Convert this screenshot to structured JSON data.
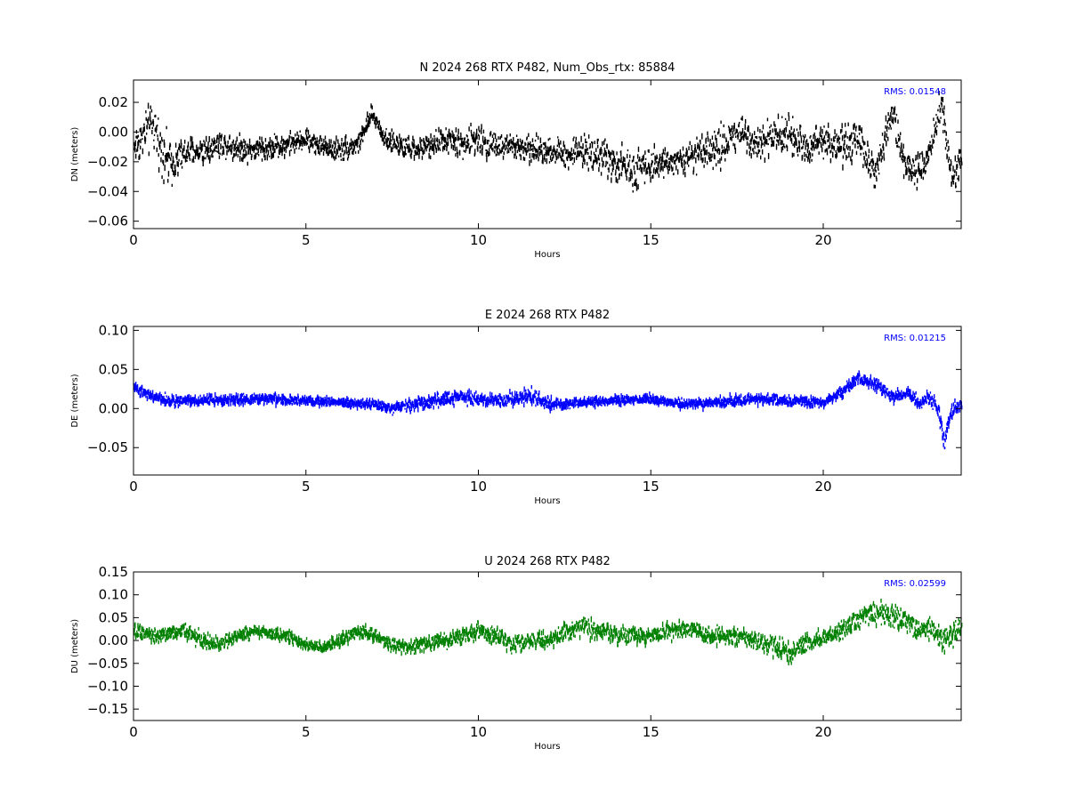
{
  "figure": {
    "background": "#ffffff"
  },
  "chart_data": [
    {
      "type": "scatter",
      "title": "N 2024 268 RTX  P482, Num_Obs_rtx: 85884",
      "xlabel": "Hours",
      "ylabel": "DN (meters)",
      "xlim": [
        0,
        24
      ],
      "ylim": [
        -0.065,
        0.035
      ],
      "x_ticks": [
        0,
        5,
        10,
        15,
        20
      ],
      "x_tick_labels": [
        "0",
        "5",
        "10",
        "15",
        "20"
      ],
      "y_ticks": [
        0.02,
        0.0,
        -0.02,
        -0.04,
        -0.06
      ],
      "y_tick_labels": [
        "0.02",
        "0.00",
        "−0.02",
        "−0.04",
        "−0.06"
      ],
      "annotation": "RMS:  0.01548",
      "annotation_color": "#0000ff",
      "color": "#000000",
      "grid": false,
      "series": [
        {
          "x": [
            0,
            0.5,
            1,
            1.5,
            2,
            2.5,
            3,
            3.5,
            4,
            4.5,
            5,
            5.5,
            6,
            6.5,
            6.9,
            7.3,
            8,
            8.5,
            9,
            9.5,
            10,
            10.5,
            11,
            11.5,
            12,
            12.5,
            13,
            13.5,
            14,
            14.5,
            15,
            15.5,
            16,
            16.5,
            17,
            17.5,
            18,
            18.5,
            19,
            19.5,
            20,
            20.5,
            21,
            21.5,
            22,
            22.3,
            22.6,
            23,
            23.4,
            23.7,
            24
          ],
          "y": [
            -0.01,
            0.005,
            -0.02,
            -0.015,
            -0.012,
            -0.008,
            -0.01,
            -0.012,
            -0.01,
            -0.008,
            -0.005,
            -0.01,
            -0.012,
            -0.008,
            0.012,
            -0.005,
            -0.012,
            -0.01,
            -0.005,
            -0.008,
            -0.005,
            -0.01,
            -0.01,
            -0.012,
            -0.012,
            -0.015,
            -0.012,
            -0.015,
            -0.022,
            -0.025,
            -0.02,
            -0.02,
            -0.018,
            -0.015,
            -0.01,
            0.0,
            -0.005,
            -0.005,
            0.0,
            -0.01,
            -0.005,
            -0.01,
            -0.005,
            -0.03,
            0.015,
            -0.02,
            -0.03,
            -0.02,
            0.02,
            -0.03,
            -0.02
          ],
          "spread": [
            0.018,
            0.022,
            0.022,
            0.016,
            0.014,
            0.012,
            0.012,
            0.012,
            0.012,
            0.01,
            0.009,
            0.01,
            0.012,
            0.01,
            0.008,
            0.01,
            0.01,
            0.011,
            0.012,
            0.014,
            0.015,
            0.013,
            0.014,
            0.012,
            0.012,
            0.014,
            0.014,
            0.016,
            0.018,
            0.02,
            0.016,
            0.012,
            0.012,
            0.016,
            0.02,
            0.02,
            0.018,
            0.016,
            0.018,
            0.016,
            0.018,
            0.016,
            0.018,
            0.02,
            0.012,
            0.02,
            0.02,
            0.016,
            0.014,
            0.018,
            0.016
          ]
        }
      ]
    },
    {
      "type": "scatter",
      "title": "E 2024 268 RTX  P482",
      "xlabel": "Hours",
      "ylabel": "DE (meters)",
      "xlim": [
        0,
        24
      ],
      "ylim": [
        -0.085,
        0.105
      ],
      "x_ticks": [
        0,
        5,
        10,
        15,
        20
      ],
      "x_tick_labels": [
        "0",
        "5",
        "10",
        "15",
        "20"
      ],
      "y_ticks": [
        0.1,
        0.05,
        0.0,
        -0.05
      ],
      "y_tick_labels": [
        "0.10",
        "0.05",
        "0.00",
        "−0.05"
      ],
      "annotation": "RMS:  0.01215",
      "annotation_color": "#0000ff",
      "color": "#0000ff",
      "grid": false,
      "series": [
        {
          "x": [
            0,
            0.5,
            1,
            2,
            3,
            4,
            5,
            6,
            7,
            7.5,
            8,
            8.5,
            9,
            9.5,
            10,
            10.5,
            11,
            11.5,
            12,
            12.5,
            13,
            14,
            15,
            16,
            17,
            18,
            19,
            20,
            20.5,
            21,
            21.5,
            22,
            22.5,
            22.8,
            23,
            23.3,
            23.5,
            23.7,
            24
          ],
          "y": [
            0.025,
            0.015,
            0.01,
            0.01,
            0.012,
            0.012,
            0.01,
            0.008,
            0.005,
            0.0,
            0.005,
            0.008,
            0.012,
            0.015,
            0.012,
            0.01,
            0.012,
            0.015,
            0.008,
            0.005,
            0.008,
            0.01,
            0.012,
            0.005,
            0.008,
            0.012,
            0.01,
            0.008,
            0.02,
            0.04,
            0.03,
            0.015,
            0.02,
            0.005,
            0.015,
            0.0,
            -0.04,
            -0.005,
            0.005
          ],
          "spread": [
            0.012,
            0.01,
            0.01,
            0.01,
            0.01,
            0.01,
            0.008,
            0.008,
            0.008,
            0.01,
            0.012,
            0.012,
            0.012,
            0.012,
            0.012,
            0.012,
            0.014,
            0.014,
            0.012,
            0.01,
            0.008,
            0.008,
            0.008,
            0.008,
            0.01,
            0.01,
            0.008,
            0.008,
            0.01,
            0.01,
            0.012,
            0.01,
            0.012,
            0.01,
            0.012,
            0.015,
            0.02,
            0.015,
            0.012
          ]
        }
      ]
    },
    {
      "type": "scatter",
      "title": "U 2024 268 RTX  P482",
      "xlabel": "Hours",
      "ylabel": "DU (meters)",
      "xlim": [
        0,
        24
      ],
      "ylim": [
        -0.175,
        0.15
      ],
      "x_ticks": [
        0,
        5,
        10,
        15,
        20
      ],
      "x_tick_labels": [
        "0",
        "5",
        "10",
        "15",
        "20"
      ],
      "y_ticks": [
        0.15,
        0.1,
        0.05,
        0.0,
        -0.05,
        -0.1,
        -0.15
      ],
      "y_tick_labels": [
        "0.15",
        "0.10",
        "0.05",
        "0.00",
        "−0.05",
        "−0.10",
        "−0.15"
      ],
      "annotation": "RMS:  0.02599",
      "annotation_color": "#0000ff",
      "color": "#008000",
      "grid": false,
      "series": [
        {
          "x": [
            0,
            0.5,
            1,
            1.5,
            2,
            2.5,
            3,
            3.5,
            4,
            4.5,
            5,
            5.5,
            6,
            6.5,
            7,
            7.5,
            8,
            8.5,
            9,
            9.5,
            10,
            10.5,
            11,
            11.5,
            12,
            12.5,
            13,
            13.5,
            14,
            14.5,
            15,
            15.5,
            16,
            16.5,
            17,
            17.5,
            18,
            18.5,
            19,
            19.5,
            20,
            20.5,
            21,
            21.5,
            22,
            22.5,
            22.8,
            23,
            23.5,
            24
          ],
          "y": [
            0.02,
            0.01,
            0.015,
            0.02,
            0.0,
            -0.01,
            0.01,
            0.02,
            0.015,
            0.01,
            -0.01,
            -0.015,
            0.0,
            0.02,
            0.01,
            -0.01,
            -0.015,
            -0.005,
            0.0,
            0.01,
            0.02,
            0.01,
            -0.01,
            0.0,
            0.0,
            0.02,
            0.03,
            0.02,
            0.01,
            0.01,
            0.01,
            0.02,
            0.03,
            0.01,
            0.01,
            0.01,
            0.0,
            -0.01,
            -0.03,
            0.0,
            0.0,
            0.02,
            0.05,
            0.06,
            0.05,
            0.04,
            0.02,
            0.03,
            0.0,
            0.03
          ],
          "spread": [
            0.025,
            0.022,
            0.022,
            0.025,
            0.025,
            0.02,
            0.02,
            0.02,
            0.018,
            0.018,
            0.016,
            0.018,
            0.02,
            0.022,
            0.022,
            0.02,
            0.022,
            0.022,
            0.022,
            0.025,
            0.028,
            0.026,
            0.026,
            0.024,
            0.024,
            0.028,
            0.028,
            0.026,
            0.026,
            0.026,
            0.026,
            0.028,
            0.03,
            0.026,
            0.026,
            0.026,
            0.026,
            0.03,
            0.036,
            0.03,
            0.026,
            0.03,
            0.036,
            0.036,
            0.032,
            0.032,
            0.04,
            0.036,
            0.04,
            0.03
          ]
        }
      ]
    }
  ]
}
